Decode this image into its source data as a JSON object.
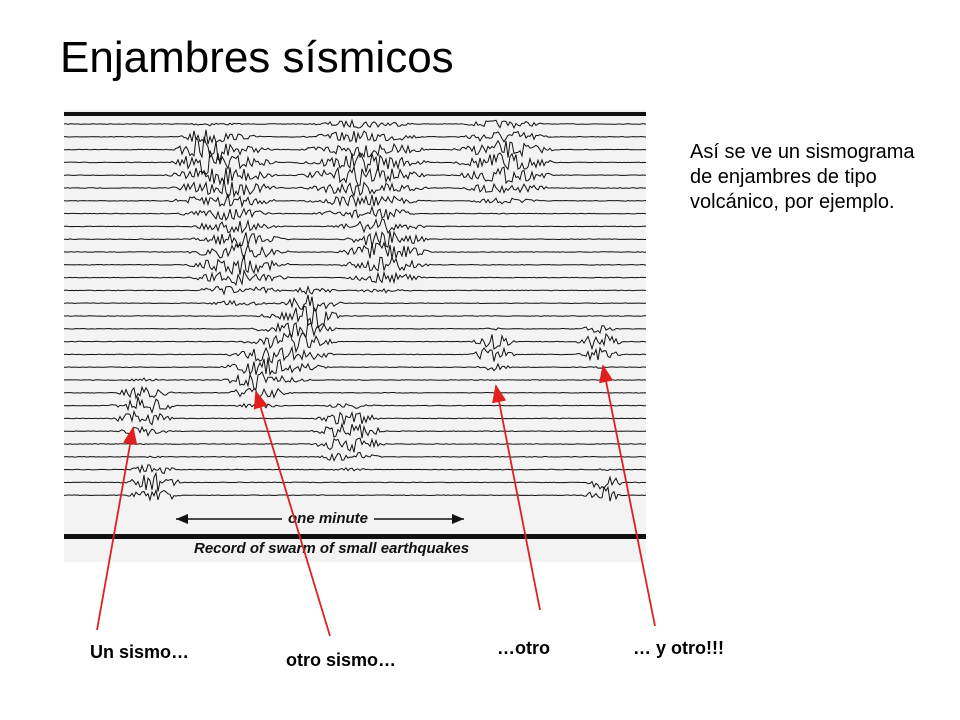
{
  "slide": {
    "title": "Enjambres sísmicos",
    "description": "Así se ve un sismograma de enjambres de tipo volcánico, por ejemplo."
  },
  "seismogram": {
    "scale_label": "one minute",
    "caption": "Record of swarm of small earthquakes",
    "trace_color": "#111111"
  },
  "annotations": [
    {
      "text": "Un sismo…"
    },
    {
      "text": "otro sismo…"
    },
    {
      "text": "…otro"
    },
    {
      "text": "… y otro!!!"
    }
  ],
  "colors": {
    "arrow": "#e02020",
    "text": "#000000"
  }
}
